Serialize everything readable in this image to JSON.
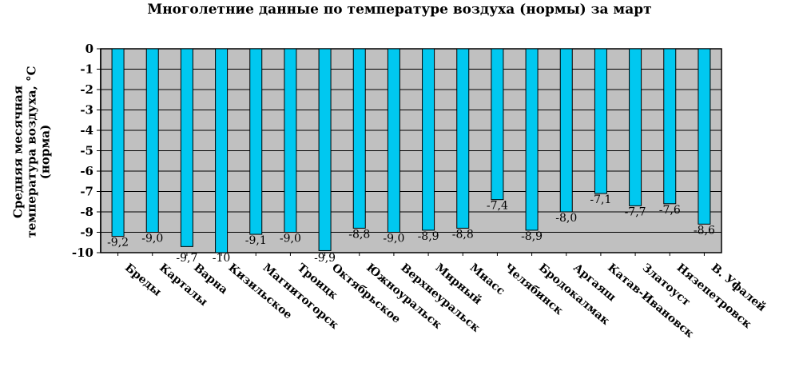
{
  "chart_data": {
    "type": "bar",
    "title": "Многолетние данные по температуре воздуха (нормы) за март",
    "ylabel_lines": [
      "Средняя месячная",
      "температура воздуха, °С",
      "(норма)"
    ],
    "xlabel": "",
    "categories": [
      "Бреды",
      "Карталы",
      "Варна",
      "Кизильское",
      "Магнитогорск",
      "Троицк",
      "Октябрьское",
      "Южноуральск",
      "Верхнеуральск",
      "Мирный",
      "Миасс",
      "Челябинск",
      "Бродокалмак",
      "Аргаяш",
      "Катав-Ивановск",
      "Златоуст",
      "Нязепетровск",
      "В. Уфалей"
    ],
    "values": [
      -9.2,
      -9.0,
      -9.7,
      -10,
      -9.1,
      -9.0,
      -9.9,
      -8.8,
      -9.0,
      -8.9,
      -8.8,
      -7.4,
      -8.9,
      -8.0,
      -7.1,
      -7.7,
      -7.6,
      -8.6
    ],
    "data_labels": [
      "-9,2",
      "-9,0",
      "-9,7",
      "-10",
      "-9,1",
      "-9,0",
      "-9,9",
      "-8,8",
      "-9,0",
      "-8,9",
      "-8,8",
      "-7,4",
      "-8,9",
      "-8,0",
      "-7,1",
      "-7,7",
      "-7,6",
      "-8,6"
    ],
    "yticks": [
      "0",
      "-1",
      "-2",
      "-3",
      "-4",
      "-5",
      "-6",
      "-7",
      "-8",
      "-9",
      "-10"
    ],
    "ylim": [
      -10,
      0
    ],
    "grid": true,
    "legend": "none",
    "colors": {
      "bar": "#00c8f0",
      "bar_stroke": "#000000",
      "plot_bg": "#c0c0c0"
    }
  }
}
